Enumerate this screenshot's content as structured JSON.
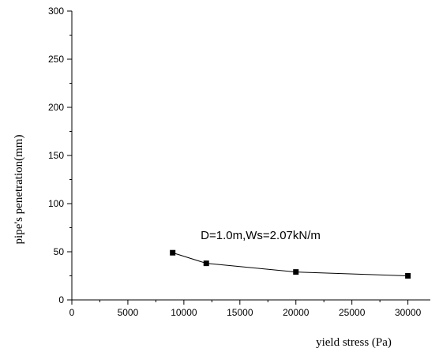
{
  "chart_data": {
    "type": "line",
    "xlabel": "yield stress (Pa)",
    "ylabel": "pipe's penetration(mm)",
    "xlim": [
      0,
      32000
    ],
    "ylim": [
      0,
      300
    ],
    "x_ticks": [
      0,
      5000,
      10000,
      15000,
      20000,
      25000,
      30000
    ],
    "y_ticks": [
      0,
      50,
      100,
      150,
      200,
      250,
      300
    ],
    "grid": false,
    "series": [
      {
        "marker": "square",
        "color": "#000000",
        "points": [
          {
            "x": 9000,
            "y": 49
          },
          {
            "x": 12000,
            "y": 38
          },
          {
            "x": 20000,
            "y": 29
          },
          {
            "x": 30000,
            "y": 25
          }
        ]
      }
    ],
    "annotation": {
      "text": "D=1.0m,Ws=2.07kN/m",
      "x": 11500,
      "y": 63
    }
  }
}
